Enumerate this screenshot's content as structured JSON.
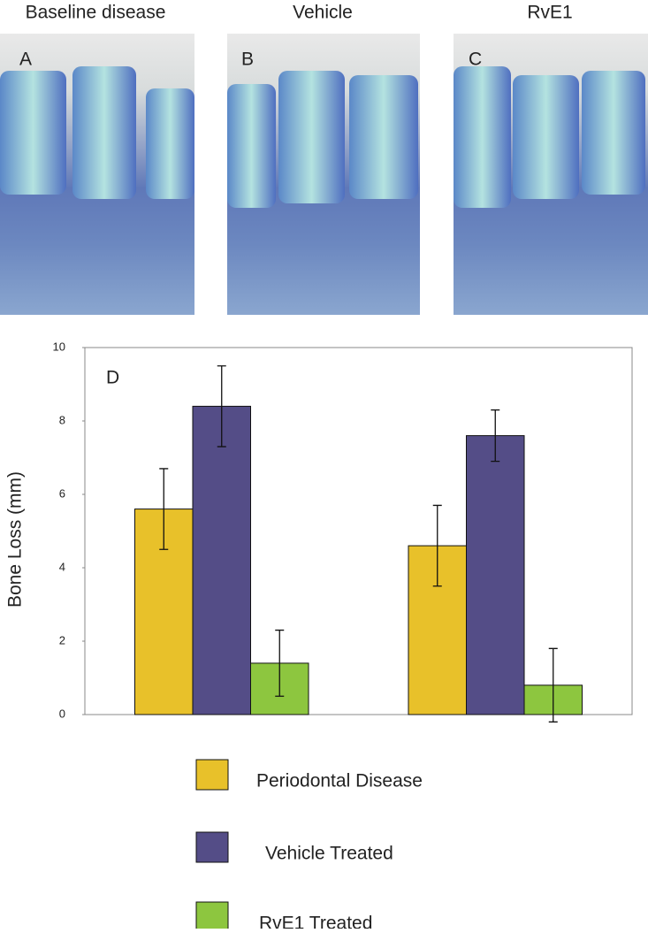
{
  "panels": [
    {
      "title": "Baseline disease",
      "letter": "A"
    },
    {
      "title": "Vehicle",
      "letter": "B"
    },
    {
      "title": "RvE1",
      "letter": "C"
    }
  ],
  "chart_data": {
    "type": "bar",
    "annotation": "D",
    "ylabel": "Bone Loss (mm)",
    "categories": [
      null,
      null
    ],
    "series": [
      {
        "name": "Periodontal Disease",
        "color": "#E8C12A",
        "values": [
          5.6,
          4.6
        ],
        "errors": [
          1.1,
          1.1
        ]
      },
      {
        "name": "Vehicle Treated",
        "color": "#544D87",
        "values": [
          8.4,
          7.6
        ],
        "errors": [
          1.1,
          0.7
        ]
      },
      {
        "name": "RvE1 Treated",
        "color": "#8DC63F",
        "values": [
          1.4,
          0.8
        ],
        "errors": [
          0.9,
          1.0
        ]
      }
    ],
    "ylim": [
      0,
      10
    ],
    "yticks": [
      0,
      2,
      4,
      6,
      8,
      10
    ],
    "grid": false
  }
}
